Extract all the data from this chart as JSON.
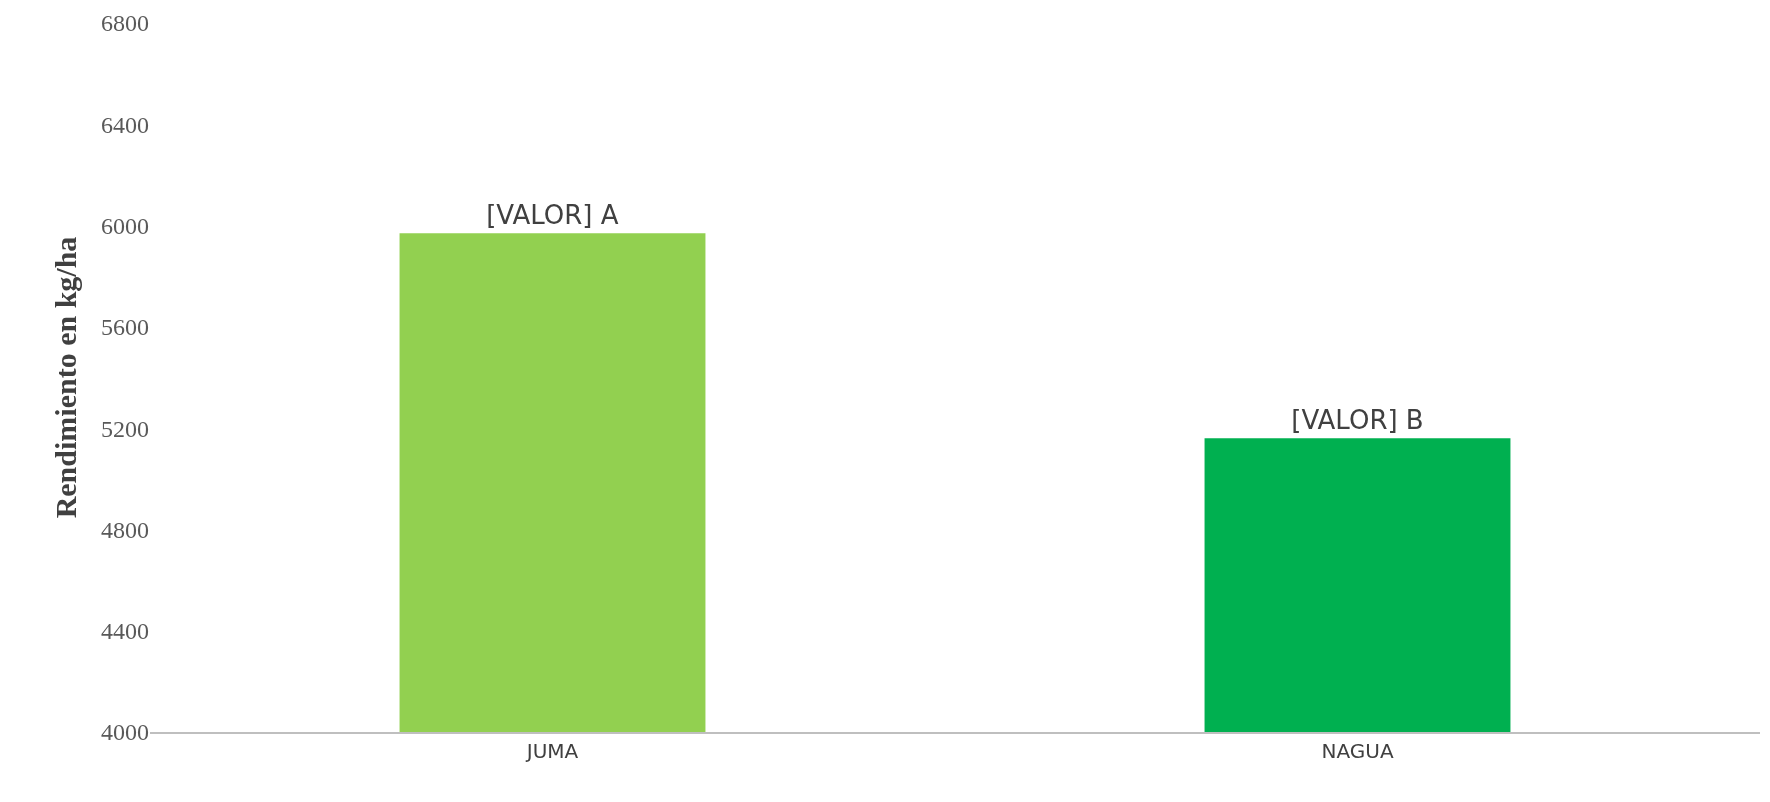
{
  "chart_data": {
    "type": "bar",
    "ylabel": "Rendimiento en kg/ha",
    "categories": [
      "JUMA",
      "NAGUA"
    ],
    "values": [
      5970,
      5160
    ],
    "colors": [
      "#92d050",
      "#00b050"
    ],
    "value_labels": [
      "[VALOR] A",
      "[VALOR] B"
    ],
    "ylim": [
      4000,
      6800
    ],
    "yticks": [
      4000,
      4400,
      4800,
      5200,
      5600,
      6000,
      6400,
      6800
    ]
  }
}
